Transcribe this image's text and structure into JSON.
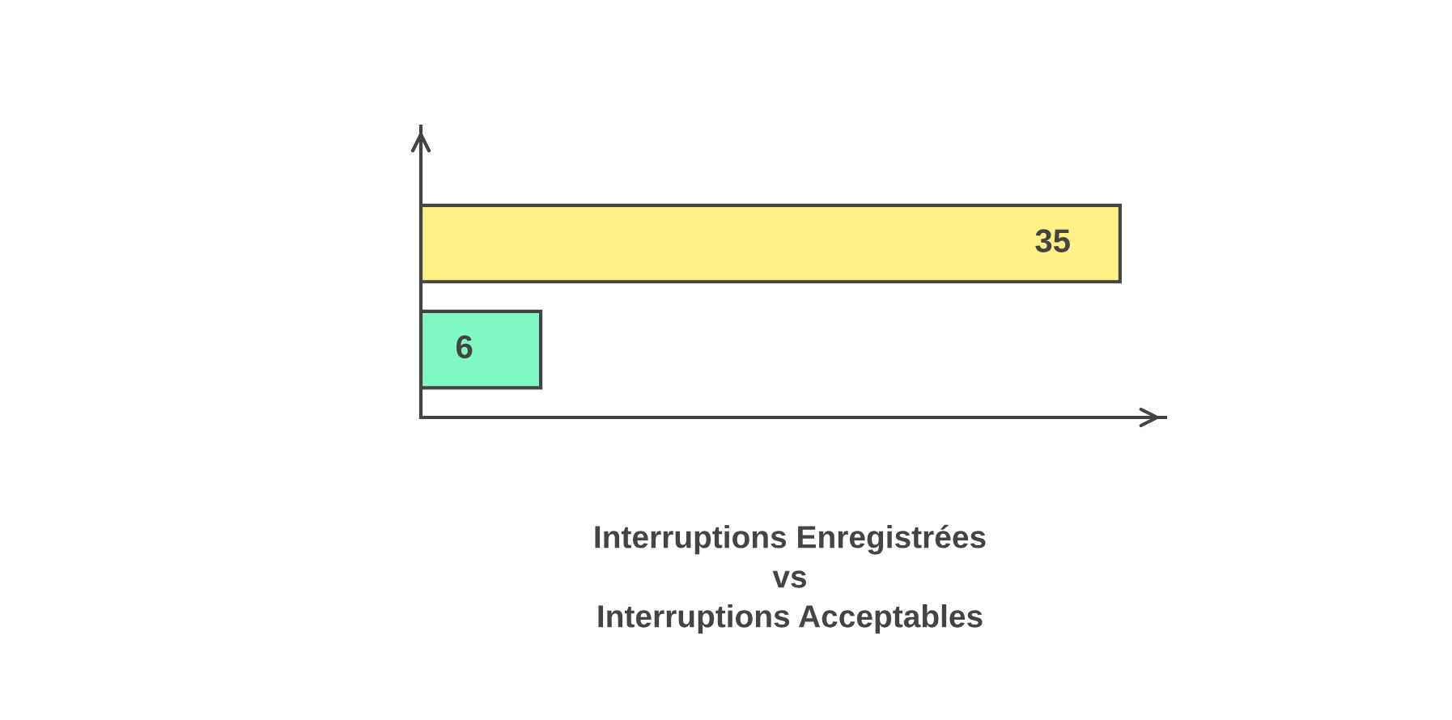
{
  "chart_data": {
    "type": "bar",
    "orientation": "horizontal",
    "title": "Interruptions Enregistrées\nvs\nInterruptions Acceptables",
    "categories": [
      null,
      null
    ],
    "values": [
      35,
      6
    ],
    "colors": [
      "#fff185",
      "#80f9c4"
    ],
    "data_labels": true,
    "grid": false,
    "legend": false
  }
}
